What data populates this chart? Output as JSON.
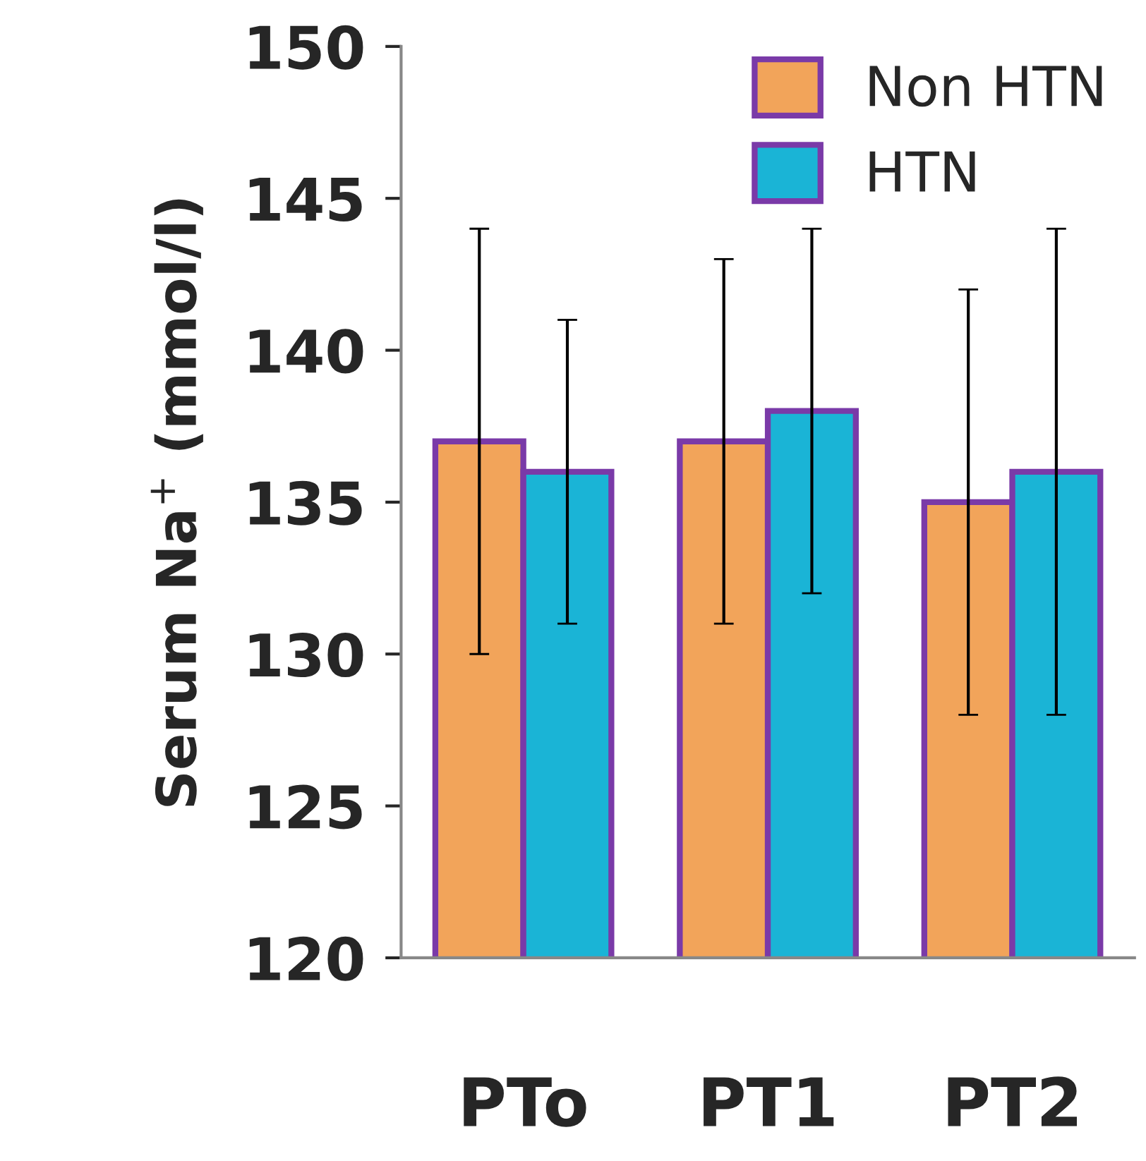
{
  "chart_data": {
    "type": "bar",
    "ylabel": "Serum Na$^{+}$ (mmol/l)",
    "categories": [
      "PTo",
      "PT1",
      "PT2"
    ],
    "series": [
      {
        "name": "Non HTN",
        "color": "#f2a45a",
        "values": [
          137,
          137,
          135
        ],
        "errors": [
          [
            130,
            144
          ],
          [
            131,
            143
          ],
          [
            128,
            142
          ]
        ]
      },
      {
        "name": "HTN",
        "color": "#1ab4d6",
        "values": [
          136,
          138,
          136
        ],
        "errors": [
          [
            131,
            141
          ],
          [
            132,
            144
          ],
          [
            128,
            144
          ]
        ]
      }
    ],
    "ylim": [
      120,
      150
    ],
    "yticks": [
      120,
      125,
      130,
      135,
      140,
      145,
      150
    ],
    "grid": false,
    "legend": "top right"
  }
}
